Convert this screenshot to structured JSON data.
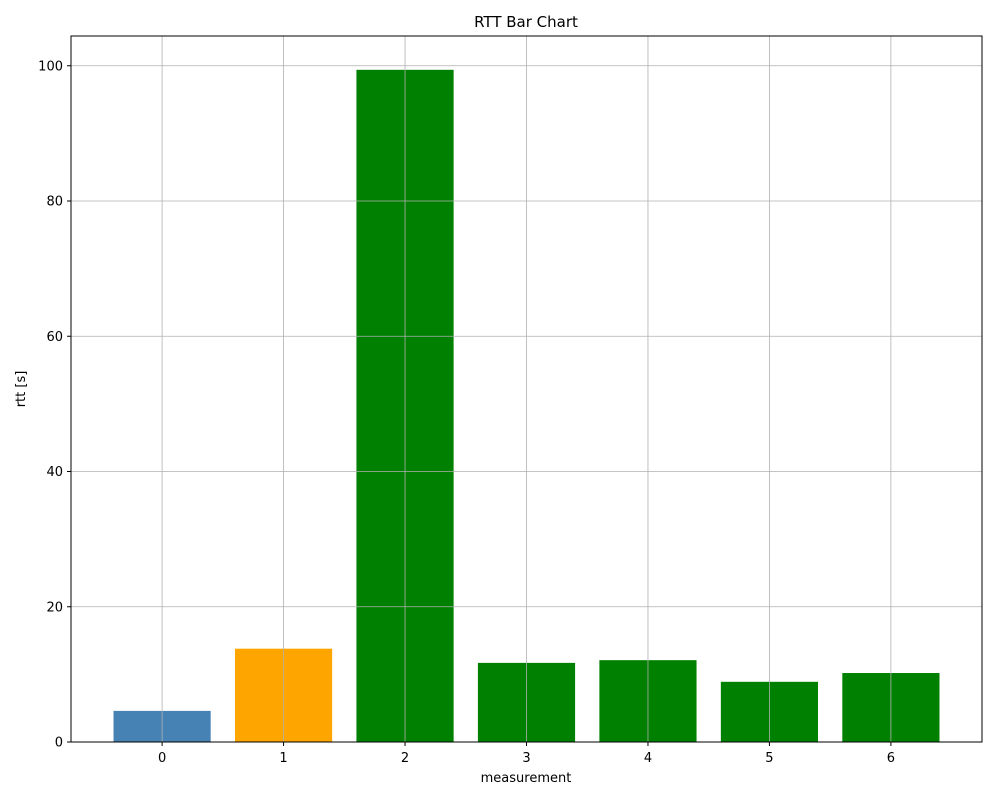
{
  "chart_data": {
    "type": "bar",
    "title": "RTT Bar Chart",
    "xlabel": "measurement",
    "ylabel": "rtt [s]",
    "categories": [
      "0",
      "1",
      "2",
      "3",
      "4",
      "5",
      "6"
    ],
    "values": [
      4.6,
      13.8,
      99.4,
      11.7,
      12.1,
      8.9,
      10.2
    ],
    "bar_colors": [
      "#4682b4",
      "#ffa500",
      "#008000",
      "#008000",
      "#008000",
      "#008000",
      "#008000"
    ],
    "xlim": [
      -0.75,
      6.75
    ],
    "ylim": [
      0,
      104.4
    ],
    "yticks": [
      0,
      20,
      40,
      60,
      80,
      100
    ],
    "grid": true,
    "legend": "none"
  }
}
